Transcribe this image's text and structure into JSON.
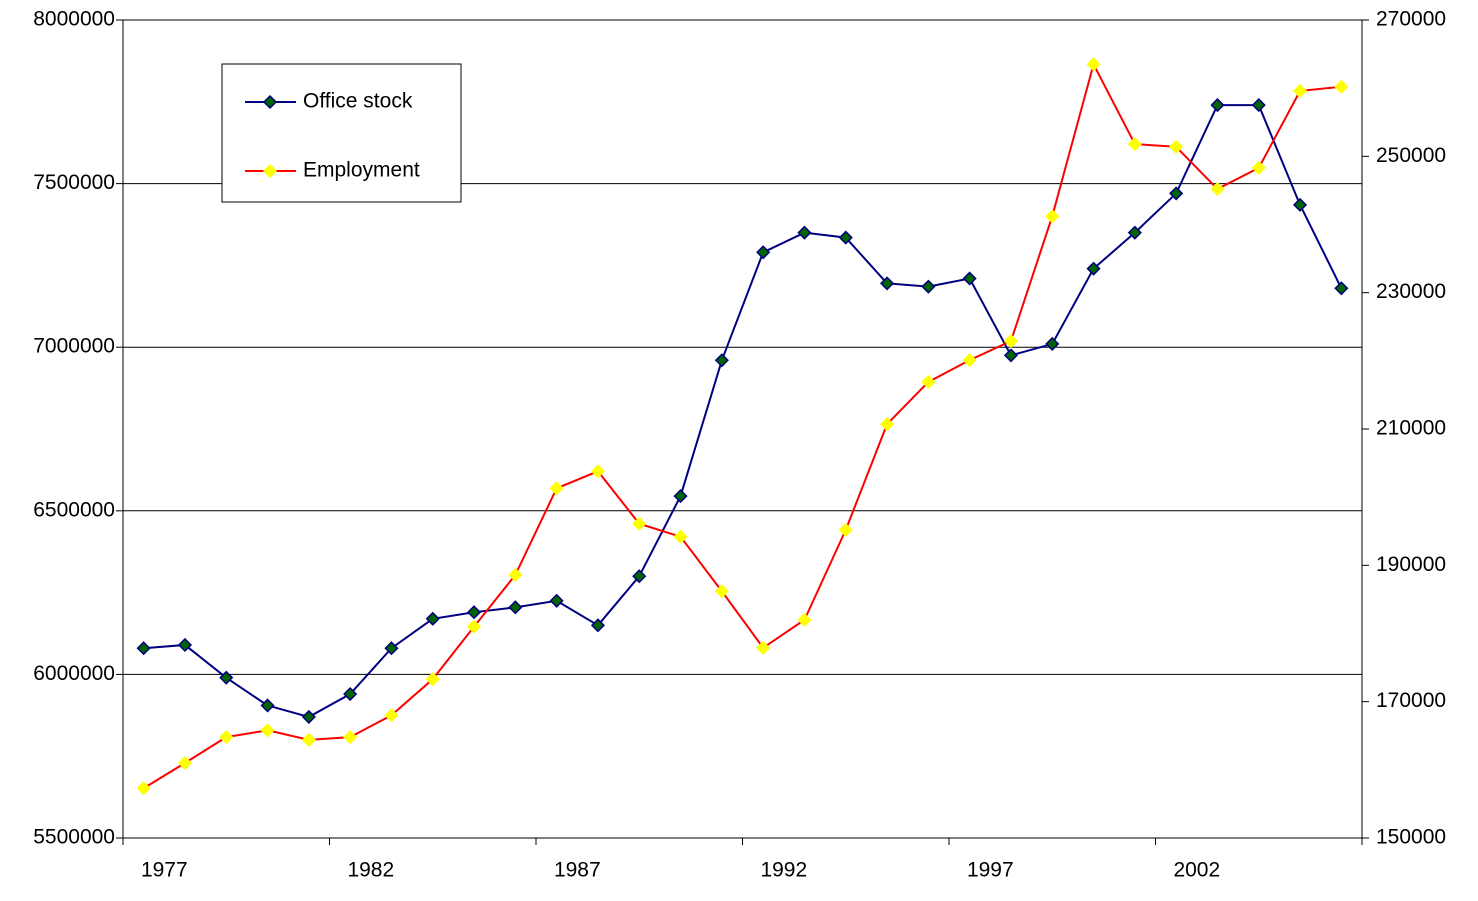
{
  "chart_data": {
    "type": "line",
    "categories": [
      "1977",
      null,
      null,
      null,
      null,
      "1982",
      null,
      null,
      null,
      null,
      "1987",
      null,
      null,
      null,
      null,
      "1992",
      null,
      null,
      null,
      null,
      "1997",
      null,
      null,
      null,
      null,
      "2002",
      null,
      null,
      null,
      null
    ],
    "series": [
      {
        "name": "Office stock",
        "color": "#000080",
        "marker_fill": "#006400",
        "axis": "y",
        "values": [
          6080000,
          6090000,
          5990000,
          5905000,
          5870000,
          5940000,
          6080000,
          6170000,
          6190000,
          6205000,
          6225000,
          6150000,
          6300000,
          6545000,
          6960000,
          7290000,
          7350000,
          7335000,
          7195000,
          7185000,
          7210000,
          6975000,
          7010000,
          7240000,
          7350000,
          7470000,
          7740000,
          7740000,
          7435000,
          7180000
        ]
      },
      {
        "name": "Employment",
        "color": "#ff0000",
        "marker_fill": "#ffff00",
        "axis": "y2",
        "values": [
          157300,
          161000,
          164800,
          165800,
          164400,
          164800,
          168000,
          173300,
          181000,
          188600,
          201300,
          203800,
          196100,
          194200,
          186200,
          177900,
          182000,
          195200,
          210700,
          216900,
          220100,
          222900,
          241200,
          263500,
          251800,
          251400,
          245200,
          248300,
          259600,
          260200
        ]
      }
    ],
    "ylim": [
      5500000,
      8000000
    ],
    "yticks": [
      5500000,
      6000000,
      6500000,
      7000000,
      7500000,
      8000000
    ],
    "y2lim": [
      150000,
      270000
    ],
    "y2ticks": [
      150000,
      170000,
      190000,
      210000,
      230000,
      250000,
      270000
    ],
    "grid": true,
    "legend": "upper left"
  }
}
